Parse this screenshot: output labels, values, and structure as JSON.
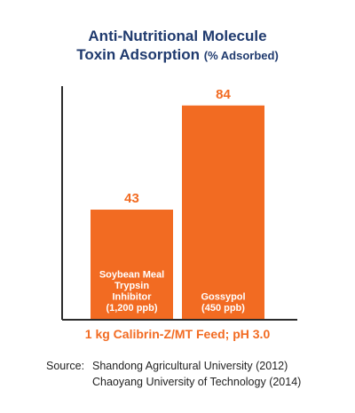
{
  "colors": {
    "accent": "#f26b22",
    "title": "#1f3a6e",
    "axis": "#2b2b2b",
    "label": "#ffffff"
  },
  "chart_data": {
    "type": "bar",
    "title": "Anti-Nutritional Molecule",
    "title_line2": "Toxin Adsorption",
    "title_unit": "(% Adsorbed)",
    "xlabel": "1 kg Calibrin-Z/MT Feed; pH 3.0",
    "ylim": [
      0,
      100
    ],
    "grid": false,
    "categories": [
      [
        "Soybean Meal",
        "Trypsin",
        "Inhibitor",
        "(1,200 ppb)"
      ],
      [
        "Gossypol",
        "(450 ppb)"
      ]
    ],
    "values": [
      43,
      84
    ],
    "data_labels": [
      "43",
      "84"
    ]
  },
  "source": {
    "label": "Source:",
    "lines": [
      "Shandong Agricultural University (2012)",
      "Chaoyang University of Technology (2014)"
    ]
  }
}
